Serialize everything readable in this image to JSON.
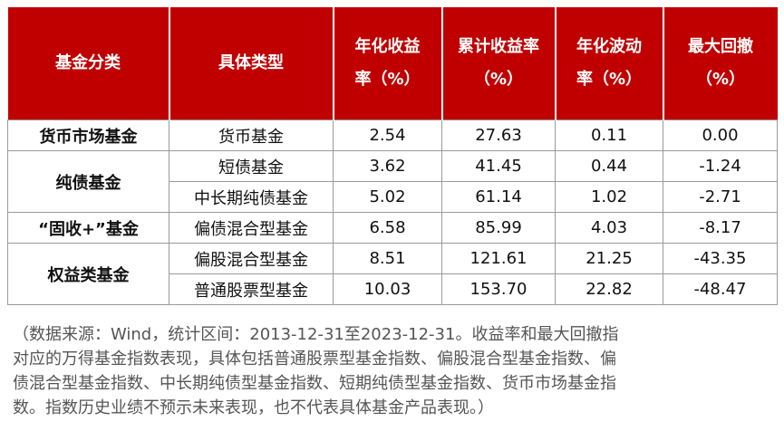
{
  "table": {
    "header": [
      [
        "基金分类"
      ],
      [
        "具体类型"
      ],
      [
        "年化收益",
        "率（%）"
      ],
      [
        "累计收益率",
        "（%）"
      ],
      [
        "年化波动",
        "率（%）"
      ],
      [
        "最大回撤",
        "（%）"
      ]
    ],
    "groups": [
      {
        "name": "货币市场基金",
        "rows": [
          [
            "货币基金",
            "2.54",
            "27.63",
            "0.11",
            "0.00"
          ]
        ]
      },
      {
        "name": "纯债基金",
        "rows": [
          [
            "短债基金",
            "3.62",
            "41.45",
            "0.44",
            "-1.24"
          ],
          [
            "中长期纯债基金",
            "5.02",
            "61.14",
            "1.02",
            "-2.71"
          ]
        ]
      },
      {
        "name": "“固收+”基金",
        "rows": [
          [
            "偏债混合型基金",
            "6.58",
            "85.99",
            "4.03",
            "-8.17"
          ]
        ]
      },
      {
        "name": "权益类基金",
        "rows": [
          [
            "偏股混合型基金",
            "8.51",
            "121.61",
            "21.25",
            "-43.35"
          ],
          [
            "普通股票型基金",
            "10.03",
            "153.70",
            "22.82",
            "-48.47"
          ]
        ]
      }
    ]
  },
  "note": [
    "（数据来源：Wind，统计区间：2013-12-31至2023-12-31。收益率和最大回撤指",
    "对应的万得基金指数表现，具体包括普通股票型基金指数、偏股混合型基金指数、偏",
    "债混合型基金指数、中长期纯债型基金指数、短期纯债型基金指数、货币市场基金指",
    "数。指数历史业绩不预示未来表现，也不代表具体基金产品表现。）"
  ]
}
